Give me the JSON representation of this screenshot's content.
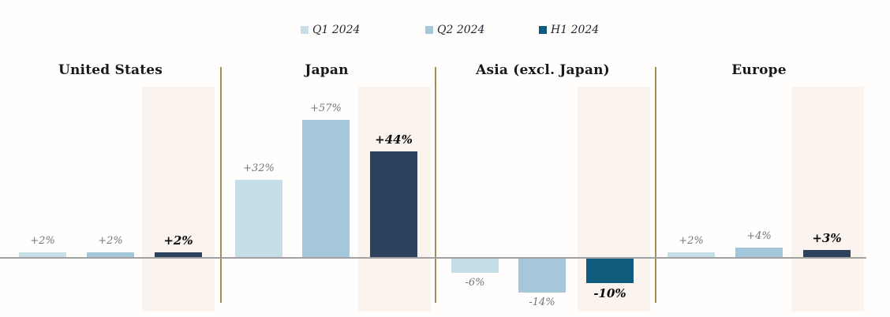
{
  "chart_data": {
    "type": "bar",
    "categories": [
      "United States",
      "Japan",
      "Asia (excl. Japan)",
      "Europe"
    ],
    "series": [
      {
        "name": "Q1 2024",
        "values": [
          2,
          32,
          -6,
          2
        ],
        "data_labels": [
          "+2%",
          "+32%",
          "-6%",
          "+2%"
        ]
      },
      {
        "name": "Q2 2024",
        "values": [
          2,
          57,
          -14,
          4
        ],
        "data_labels": [
          "+2%",
          "+57%",
          "-14%",
          "+4%"
        ]
      },
      {
        "name": "H1 2024",
        "values": [
          2,
          44,
          -10,
          3
        ],
        "data_labels": [
          "+2%",
          "+44%",
          "-10%",
          "+3%"
        ]
      }
    ],
    "unit": "%",
    "ylim": [
      -20,
      62
    ],
    "grid": false,
    "legend_position": "top-center",
    "annotations": "H1 2024 bars sit on cream highlight bands; regions separated by vertical tan rules; gray zero baseline spans the chart; quarter labels are gray italic, H1 labels bold black italic"
  },
  "legend": [
    {
      "label": "Q1 2024",
      "color": "#c6dfe7"
    },
    {
      "label": "Q2 2024",
      "color": "#a4c7d9"
    },
    {
      "label": "H1 2024",
      "color": "#0e5b7e"
    }
  ],
  "colors": {
    "q1_bar": "#c6dfe7",
    "q2_bar": "#a4c7d9",
    "h1_bar_positive": "#2b415c",
    "h1_bar_negative": "#0e5b7e",
    "highlight_band": "#faf3ee",
    "divider": "#a48c55",
    "baseline": "#a2a2a2",
    "minor_label": "#757575",
    "major_label": "#0c0c0c",
    "header_text": "#191919",
    "background": "#ffffff"
  }
}
